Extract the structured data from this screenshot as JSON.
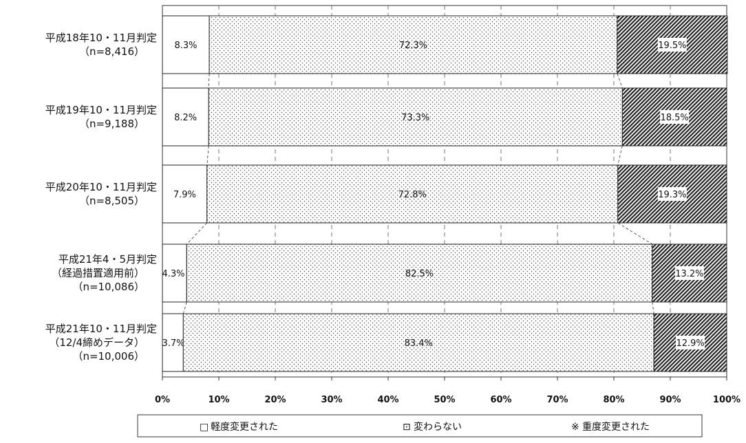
{
  "chart_data": {
    "type": "bar",
    "orientation": "horizontal",
    "stacked": "percent",
    "categories": [
      [
        "平成18年10・11月判定",
        "（n=8,416）"
      ],
      [
        "平成19年10・11月判定",
        "（n=9,188）"
      ],
      [
        "平成20年10・11月判定",
        "（n=8,505）"
      ],
      [
        "平成21年4・5月判定",
        "（経過措置適用前）",
        "（n=10,086）"
      ],
      [
        "平成21年10・11月判定",
        "（12/4締めデータ）",
        "（n=10,006）"
      ]
    ],
    "series": [
      {
        "name": "軽度変更された",
        "values": [
          8.3,
          8.2,
          7.9,
          4.3,
          3.7
        ],
        "labels": [
          "8.3%",
          "8.2%",
          "7.9%",
          "4.3%",
          "3.7%"
        ],
        "fill": "blank",
        "color": "#ffffff"
      },
      {
        "name": "変わらない",
        "values": [
          72.3,
          73.3,
          72.8,
          82.5,
          83.4
        ],
        "labels": [
          "72.3%",
          "73.3%",
          "72.8%",
          "82.5%",
          "83.4%"
        ],
        "fill": "dots",
        "color": "#f2f2f2"
      },
      {
        "name": "重度変更された",
        "values": [
          19.5,
          18.5,
          19.3,
          13.2,
          12.9
        ],
        "labels": [
          "19.5%",
          "18.5%",
          "19.3%",
          "13.2%",
          "12.9%"
        ],
        "fill": "diagonal",
        "color": "#222222"
      }
    ],
    "xlim": [
      0,
      100
    ],
    "xticks": [
      "0%",
      "10%",
      "20%",
      "30%",
      "40%",
      "50%",
      "60%",
      "70%",
      "80%",
      "90%",
      "100%"
    ],
    "grid": "vertical dashed",
    "legend_position": "bottom",
    "legend_markers": [
      "□",
      "⊡",
      "※"
    ],
    "series_lines": true
  }
}
